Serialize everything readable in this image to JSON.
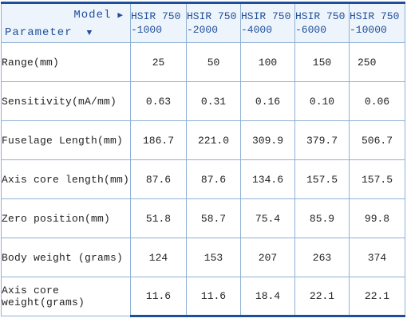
{
  "header": {
    "model_label": "Model",
    "parameter_label": "Parameter",
    "models": [
      {
        "line1": "HSIR 750",
        "line2": "-1000"
      },
      {
        "line1": "HSIR 750",
        "line2": "-2000"
      },
      {
        "line1": "HSIR 750",
        "line2": "-4000"
      },
      {
        "line1": "HSIR 750",
        "line2": "-6000"
      },
      {
        "line1": "HSIR 750",
        "line2": "-10000"
      }
    ]
  },
  "rows": [
    {
      "label": "Range(mm)",
      "values": [
        "25",
        "50",
        "100",
        "150",
        "250"
      ]
    },
    {
      "label": "Sensitivity(mA/mm)",
      "values": [
        "0.63",
        "0.31",
        "0.16",
        "0.10",
        "0.06"
      ]
    },
    {
      "label": "Fuselage Length(mm)",
      "values": [
        "186.7",
        "221.0",
        "309.9",
        "379.7",
        "506.7"
      ]
    },
    {
      "label": "Axis core length(mm)",
      "values": [
        "87.6",
        "87.6",
        "134.6",
        "157.5",
        "157.5"
      ]
    },
    {
      "label": "Zero position(mm)",
      "values": [
        "51.8",
        "58.7",
        "75.4",
        "85.9",
        "99.8"
      ]
    },
    {
      "label": "Body weight (grams)",
      "values": [
        "124",
        "153",
        "207",
        "263",
        "374"
      ]
    },
    {
      "label": "Axis core weight(grams)",
      "values": [
        "11.6",
        "11.6",
        "18.4",
        "22.1",
        "22.1"
      ]
    }
  ],
  "colors": {
    "accent": "#1e4f9a",
    "grid": "#8fb0d4",
    "header_bg": "#eef4fb"
  },
  "icons": {
    "model_arrow": "triangle-right-icon",
    "parameter_arrow": "triangle-down-icon"
  }
}
